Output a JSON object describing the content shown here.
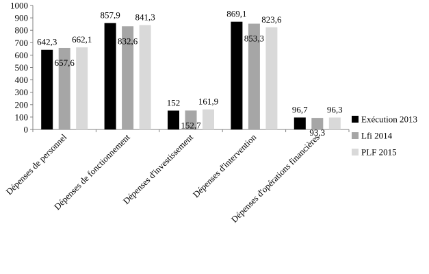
{
  "chart_data": {
    "type": "bar",
    "title": "",
    "xlabel": "",
    "ylabel": "",
    "ylim": [
      0,
      1000
    ],
    "yticks": [
      0,
      100,
      200,
      300,
      400,
      500,
      600,
      700,
      800,
      900,
      1000
    ],
    "grid": false,
    "legend_position": "right",
    "categories": [
      "Dépenses de personnel",
      "Dépenses de fonctionnement",
      "Dépenses d'investissement",
      "Dépenses d'intervention",
      "Dépenses d'opérations financières"
    ],
    "series": [
      {
        "name": "Exécution 2013",
        "color": "#000000",
        "values": [
          642.3,
          857.9,
          152,
          869.1,
          96.7
        ],
        "labels": [
          "642,3",
          "857,9",
          "152",
          "869,1",
          "96,7"
        ]
      },
      {
        "name": "Lfi 2014",
        "color": "#a6a6a6",
        "values": [
          657.6,
          832.6,
          152.7,
          853.3,
          93.3
        ],
        "labels": [
          "657,6",
          "832,6",
          "152,7",
          "853,3",
          "93,3"
        ]
      },
      {
        "name": "PLF 2015",
        "color": "#d9d9d9",
        "values": [
          662.1,
          841.3,
          161.9,
          823.6,
          96.3
        ],
        "labels": [
          "662,1",
          "841,3",
          "161,9",
          "823,6",
          "96,3"
        ]
      }
    ]
  }
}
